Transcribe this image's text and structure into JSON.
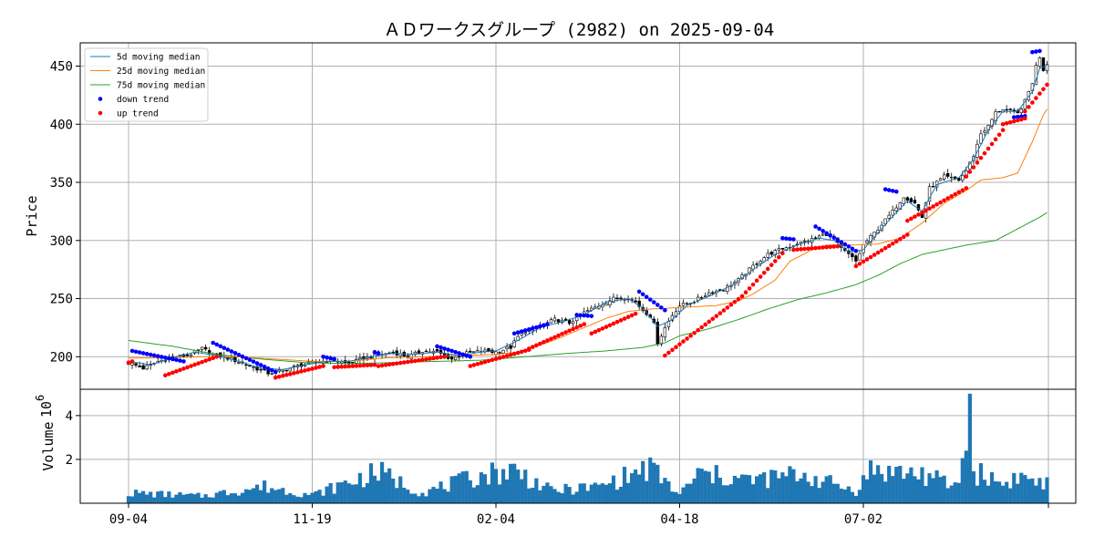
{
  "chart_data": {
    "type": "candlestick",
    "title": "ＡＤワークスグループ (2982) on 2025-09-04",
    "ylabel": "Price",
    "volume_ylabel": "Volume",
    "volume_multiplier": "10",
    "volume_multiplier_exp": "6",
    "ylim": [
      172,
      470
    ],
    "volume_ylim": [
      0,
      5.2
    ],
    "yticks": [
      200,
      250,
      300,
      350,
      400,
      450
    ],
    "volume_yticks": [
      2,
      4
    ],
    "x_tick_labels": [
      {
        "label": "09-04",
        "index": 0
      },
      {
        "label": "11-19",
        "index": 50
      },
      {
        "label": "02-04",
        "index": 100
      },
      {
        "label": "04-18",
        "index": 150
      },
      {
        "label": "07-02",
        "index": 200
      }
    ],
    "grid": true,
    "legend_placement": "upper-left",
    "legend": [
      {
        "label": " 5d moving median",
        "color": "#1f77b4",
        "kind": "line"
      },
      {
        "label": "25d moving median",
        "color": "#ff7f0e",
        "kind": "line"
      },
      {
        "label": "75d moving median",
        "color": "#2ca02c",
        "kind": "line"
      },
      {
        "label": "down trend",
        "color": "#0000ff",
        "kind": "dot"
      },
      {
        "label": "up trend",
        "color": "#ff0000",
        "kind": "dot"
      }
    ],
    "close_keypoints": [
      [
        0,
        195
      ],
      [
        4,
        190
      ],
      [
        8,
        196
      ],
      [
        12,
        200
      ],
      [
        16,
        201
      ],
      [
        20,
        207
      ],
      [
        24,
        201
      ],
      [
        28,
        198
      ],
      [
        33,
        192
      ],
      [
        38,
        186
      ],
      [
        42,
        188
      ],
      [
        46,
        192
      ],
      [
        50,
        195
      ],
      [
        55,
        197
      ],
      [
        60,
        194
      ],
      [
        64,
        199
      ],
      [
        68,
        201
      ],
      [
        72,
        204
      ],
      [
        76,
        200
      ],
      [
        80,
        205
      ],
      [
        84,
        204
      ],
      [
        88,
        198
      ],
      [
        92,
        203
      ],
      [
        96,
        205
      ],
      [
        100,
        204
      ],
      [
        104,
        208
      ],
      [
        106,
        217
      ],
      [
        108,
        222
      ],
      [
        112,
        226
      ],
      [
        116,
        232
      ],
      [
        120,
        229
      ],
      [
        124,
        238
      ],
      [
        128,
        244
      ],
      [
        132,
        250
      ],
      [
        136,
        251
      ],
      [
        138,
        247
      ],
      [
        140,
        240
      ],
      [
        142,
        235
      ],
      [
        143,
        228
      ],
      [
        144,
        212
      ],
      [
        146,
        225
      ],
      [
        148,
        236
      ],
      [
        150,
        244
      ],
      [
        154,
        248
      ],
      [
        158,
        255
      ],
      [
        162,
        258
      ],
      [
        166,
        266
      ],
      [
        170,
        278
      ],
      [
        174,
        288
      ],
      [
        178,
        293
      ],
      [
        182,
        297
      ],
      [
        186,
        301
      ],
      [
        190,
        306
      ],
      [
        192,
        301
      ],
      [
        194,
        293
      ],
      [
        196,
        288
      ],
      [
        198,
        282
      ],
      [
        200,
        296
      ],
      [
        204,
        310
      ],
      [
        208,
        325
      ],
      [
        211,
        338
      ],
      [
        214,
        332
      ],
      [
        216,
        320
      ],
      [
        218,
        345
      ],
      [
        222,
        355
      ],
      [
        226,
        352
      ],
      [
        228,
        360
      ],
      [
        230,
        373
      ],
      [
        232,
        392
      ],
      [
        234,
        398
      ],
      [
        236,
        410
      ],
      [
        238,
        413
      ],
      [
        240,
        411
      ],
      [
        242,
        409
      ],
      [
        244,
        420
      ],
      [
        246,
        436
      ],
      [
        247,
        450
      ],
      [
        248,
        458
      ],
      [
        249,
        447
      ],
      [
        250,
        452
      ]
    ],
    "ma5_keypoints": [
      [
        0,
        196
      ],
      [
        6,
        193
      ],
      [
        12,
        199
      ],
      [
        18,
        204
      ],
      [
        24,
        201
      ],
      [
        30,
        196
      ],
      [
        36,
        190
      ],
      [
        42,
        189
      ],
      [
        48,
        193
      ],
      [
        54,
        196
      ],
      [
        60,
        196
      ],
      [
        66,
        200
      ],
      [
        72,
        203
      ],
      [
        78,
        202
      ],
      [
        84,
        204
      ],
      [
        90,
        201
      ],
      [
        96,
        204
      ],
      [
        100,
        205
      ],
      [
        106,
        214
      ],
      [
        112,
        225
      ],
      [
        118,
        230
      ],
      [
        124,
        236
      ],
      [
        130,
        247
      ],
      [
        136,
        250
      ],
      [
        140,
        242
      ],
      [
        144,
        226
      ],
      [
        148,
        232
      ],
      [
        152,
        244
      ],
      [
        158,
        252
      ],
      [
        164,
        261
      ],
      [
        170,
        275
      ],
      [
        176,
        288
      ],
      [
        182,
        296
      ],
      [
        188,
        302
      ],
      [
        192,
        300
      ],
      [
        196,
        290
      ],
      [
        200,
        292
      ],
      [
        206,
        314
      ],
      [
        212,
        334
      ],
      [
        216,
        325
      ],
      [
        220,
        348
      ],
      [
        226,
        354
      ],
      [
        230,
        370
      ],
      [
        234,
        395
      ],
      [
        238,
        411
      ],
      [
        242,
        411
      ],
      [
        246,
        428
      ],
      [
        248,
        448
      ],
      [
        250,
        451
      ]
    ],
    "ma25_keypoints": [
      [
        0,
        199
      ],
      [
        10,
        199
      ],
      [
        20,
        200
      ],
      [
        30,
        200
      ],
      [
        40,
        198
      ],
      [
        50,
        196
      ],
      [
        60,
        196
      ],
      [
        70,
        199
      ],
      [
        80,
        200
      ],
      [
        90,
        201
      ],
      [
        100,
        202
      ],
      [
        106,
        204
      ],
      [
        112,
        210
      ],
      [
        118,
        217
      ],
      [
        124,
        225
      ],
      [
        130,
        233
      ],
      [
        136,
        239
      ],
      [
        142,
        241
      ],
      [
        148,
        242
      ],
      [
        154,
        243
      ],
      [
        160,
        244
      ],
      [
        166,
        248
      ],
      [
        170,
        254
      ],
      [
        176,
        266
      ],
      [
        180,
        282
      ],
      [
        186,
        292
      ],
      [
        190,
        296
      ],
      [
        196,
        296
      ],
      [
        204,
        297
      ],
      [
        210,
        302
      ],
      [
        216,
        315
      ],
      [
        222,
        332
      ],
      [
        228,
        343
      ],
      [
        232,
        352
      ],
      [
        238,
        354
      ],
      [
        242,
        358
      ],
      [
        246,
        385
      ],
      [
        249,
        408
      ],
      [
        250,
        413
      ]
    ],
    "ma75_keypoints": [
      [
        0,
        214
      ],
      [
        12,
        209
      ],
      [
        24,
        202
      ],
      [
        36,
        198
      ],
      [
        48,
        195
      ],
      [
        60,
        194
      ],
      [
        72,
        195
      ],
      [
        84,
        196
      ],
      [
        96,
        197
      ],
      [
        108,
        200
      ],
      [
        120,
        203
      ],
      [
        130,
        205
      ],
      [
        140,
        208
      ],
      [
        146,
        212
      ],
      [
        150,
        218
      ],
      [
        158,
        224
      ],
      [
        166,
        232
      ],
      [
        174,
        241
      ],
      [
        182,
        249
      ],
      [
        190,
        255
      ],
      [
        198,
        262
      ],
      [
        204,
        270
      ],
      [
        210,
        280
      ],
      [
        216,
        288
      ],
      [
        222,
        292
      ],
      [
        228,
        296
      ],
      [
        236,
        300
      ],
      [
        242,
        310
      ],
      [
        248,
        320
      ],
      [
        250,
        324
      ]
    ],
    "down_trend_segments": [
      [
        1,
        15,
        205,
        196
      ],
      [
        23,
        40,
        212,
        187
      ],
      [
        53,
        56,
        200,
        198
      ],
      [
        67,
        68,
        204,
        203
      ],
      [
        84,
        93,
        209,
        200
      ],
      [
        105,
        114,
        220,
        228
      ],
      [
        122,
        126,
        236,
        235
      ],
      [
        139,
        146,
        256,
        240
      ],
      [
        178,
        181,
        302,
        301
      ],
      [
        187,
        198,
        312,
        291
      ],
      [
        206,
        209,
        344,
        342
      ],
      [
        241,
        244,
        406,
        407
      ],
      [
        246,
        248,
        462,
        463
      ]
    ],
    "up_trend_segments": [
      [
        0,
        1,
        195,
        196
      ],
      [
        10,
        24,
        184,
        200
      ],
      [
        40,
        53,
        182,
        192
      ],
      [
        56,
        67,
        191,
        193
      ],
      [
        68,
        86,
        192,
        200
      ],
      [
        93,
        109,
        192,
        206
      ],
      [
        109,
        124,
        207,
        228
      ],
      [
        126,
        138,
        220,
        237
      ],
      [
        146,
        167,
        201,
        252
      ],
      [
        167,
        178,
        252,
        289
      ],
      [
        181,
        193,
        292,
        295
      ],
      [
        198,
        212,
        278,
        305
      ],
      [
        212,
        228,
        317,
        345
      ],
      [
        228,
        238,
        355,
        395
      ],
      [
        238,
        244,
        400,
        405
      ],
      [
        244,
        250,
        411,
        434
      ]
    ],
    "volume_keypoints": [
      [
        0,
        0.5
      ],
      [
        20,
        0.35
      ],
      [
        37,
        0.8
      ],
      [
        50,
        0.4
      ],
      [
        68,
        1.5
      ],
      [
        80,
        0.5
      ],
      [
        97,
        1.4
      ],
      [
        105,
        1.6
      ],
      [
        115,
        0.6
      ],
      [
        128,
        0.8
      ],
      [
        142,
        1.7
      ],
      [
        150,
        0.4
      ],
      [
        155,
        1.4
      ],
      [
        170,
        1.1
      ],
      [
        183,
        1.4
      ],
      [
        198,
        0.6
      ],
      [
        202,
        1.6
      ],
      [
        216,
        1.4
      ],
      [
        225,
        0.8
      ],
      [
        228,
        2.4
      ],
      [
        229,
        5.0
      ],
      [
        230,
        1.5
      ],
      [
        234,
        1.3
      ],
      [
        238,
        0.9
      ],
      [
        242,
        1.3
      ],
      [
        250,
        0.9
      ]
    ]
  }
}
